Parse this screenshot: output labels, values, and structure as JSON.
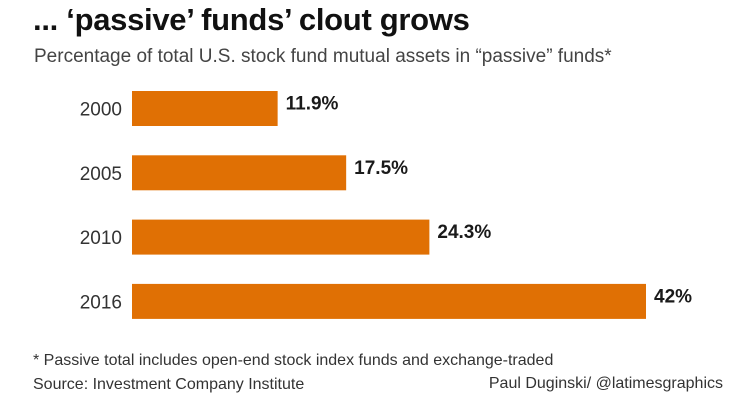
{
  "colors": {
    "bar": "#E07004"
  },
  "chart_data": {
    "type": "bar",
    "orientation": "horizontal",
    "title": "... ‘passive’ funds’ clout grows",
    "subtitle": "Percentage of total U.S. stock fund mutual assets in “passive” funds*",
    "categories": [
      "2000",
      "2005",
      "2010",
      "2016"
    ],
    "values": [
      11.9,
      17.5,
      24.3,
      42
    ],
    "data_labels": [
      "11.9%",
      "17.5%",
      "24.3%",
      "42%"
    ],
    "xlim": [
      0,
      42
    ],
    "grid": false,
    "legend": "none",
    "footnote": "* Passive total includes open-end stock index funds and exchange-traded",
    "source": "Source: Investment Company Institute",
    "credit": "Paul Duginski/ @latimesgraphics"
  }
}
